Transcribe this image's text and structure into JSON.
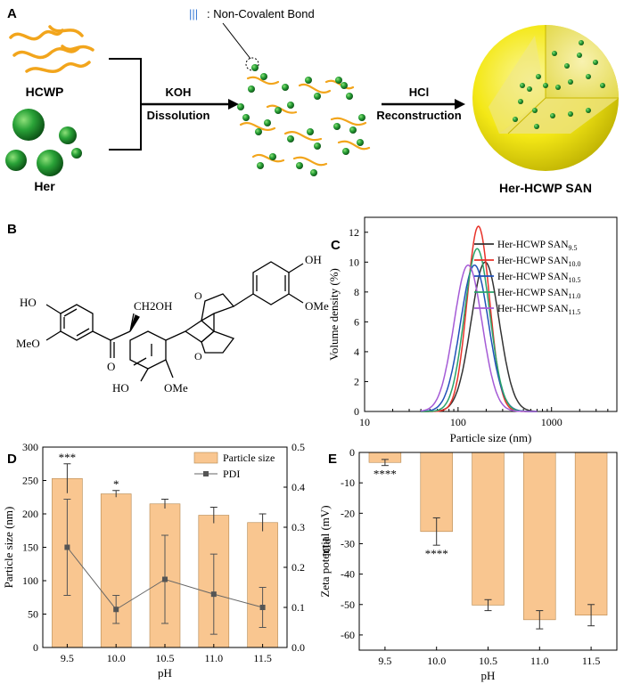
{
  "panels": {
    "A": {
      "letter": "A",
      "legend_symbol": "|||",
      "legend_text": ": Non-Covalent Bond",
      "hcwp": "HCWP",
      "her": "Her",
      "step1_top": "KOH",
      "step1_bottom": "Dissolution",
      "step2_top": "HCl",
      "step2_bottom": "Reconstruction",
      "product": "Her-HCWP SAN",
      "colors": {
        "fiber": "#f2a51c",
        "sphere": "#1f8a2f",
        "nanoparticle": "#f4e816"
      }
    },
    "B": {
      "letter": "B",
      "labels": {
        "ho": "HO",
        "meo": "MeO",
        "ch2oh": "CH2OH",
        "oh_ring": "HO",
        "ome_bottom": "OMe",
        "oh_top": "OH",
        "ome_top": "OMe",
        "o": "O"
      }
    },
    "C": {
      "letter": "C"
    },
    "D": {
      "letter": "D"
    },
    "E": {
      "letter": "E"
    }
  },
  "chart_data": [
    {
      "id": "C",
      "type": "line",
      "xlabel": "Particle size (nm)",
      "ylabel": "Volume density (%)",
      "xscale": "log",
      "xlim": [
        10,
        5000
      ],
      "ylim": [
        0,
        13
      ],
      "xticks": [
        "10",
        "100",
        "1000"
      ],
      "yticks": [
        "0",
        "2",
        "4",
        "6",
        "8",
        "10",
        "12"
      ],
      "legend_position": "top-right",
      "series": [
        {
          "name": "Her-HCWP SAN",
          "sub": "9.5",
          "color": "#333333",
          "peak_x": 195,
          "peak_y": 10.0,
          "sigma_log10": 0.15
        },
        {
          "name": "Her-HCWP SAN",
          "sub": "10.0",
          "color": "#e8332a",
          "peak_x": 165,
          "peak_y": 12.4,
          "sigma_log10": 0.12
        },
        {
          "name": "Her-HCWP SAN",
          "sub": "10.5",
          "color": "#2050b8",
          "peak_x": 150,
          "peak_y": 9.8,
          "sigma_log10": 0.15
        },
        {
          "name": "Her-HCWP SAN",
          "sub": "11.0",
          "color": "#2aa36a",
          "peak_x": 160,
          "peak_y": 10.9,
          "sigma_log10": 0.135
        },
        {
          "name": "Her-HCWP SAN",
          "sub": "11.5",
          "color": "#a55bd6",
          "peak_x": 128,
          "peak_y": 9.8,
          "sigma_log10": 0.15
        }
      ]
    },
    {
      "id": "D",
      "type": "bar",
      "categories": [
        "9.5",
        "10.0",
        "10.5",
        "11.0",
        "11.5"
      ],
      "xlabel": "pH",
      "ylabel": "Particle size (nm)",
      "ylabel2": "PDI",
      "ylim": [
        0,
        300
      ],
      "ylim2": [
        0,
        0.5
      ],
      "yticks": [
        "0",
        "50",
        "100",
        "150",
        "200",
        "250",
        "300"
      ],
      "yticks2": [
        "0.0",
        "0.1",
        "0.2",
        "0.3",
        "0.4",
        "0.5"
      ],
      "bar_color": "#f9c690",
      "line_color": "#666666",
      "series": [
        {
          "name": "Particle size",
          "values": [
            253,
            230,
            215,
            198,
            187
          ],
          "errors": [
            22,
            5,
            7,
            12,
            13
          ]
        },
        {
          "name": "PDI",
          "axis": "right",
          "values": [
            0.25,
            0.095,
            0.17,
            0.133,
            0.1
          ],
          "errors": [
            0.12,
            0.035,
            0.11,
            0.1,
            0.05
          ]
        }
      ],
      "annotations": [
        "***",
        "*",
        "",
        "",
        ""
      ],
      "legend_position": "top-right"
    },
    {
      "id": "E",
      "type": "bar",
      "categories": [
        "9.5",
        "10.0",
        "10.5",
        "11.0",
        "11.5"
      ],
      "xlabel": "pH",
      "ylabel": "Zeta potential (mV)",
      "ylim": [
        -65,
        0
      ],
      "yticks": [
        "0",
        "-10",
        "-20",
        "-30",
        "-40",
        "-50",
        "-60"
      ],
      "bar_color": "#f9c690",
      "values": [
        -3.3,
        -26,
        -50.2,
        -55,
        -53.5
      ],
      "errors": [
        1,
        4.5,
        1.8,
        3,
        3.5
      ],
      "annotations": [
        "****",
        "****",
        "",
        "",
        ""
      ]
    }
  ]
}
